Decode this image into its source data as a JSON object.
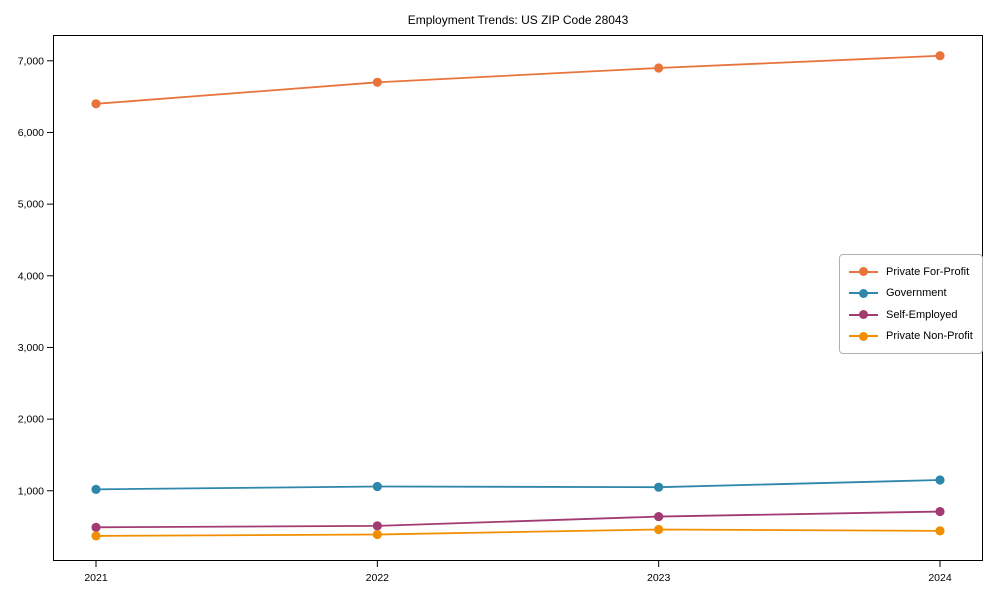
{
  "chart_data": {
    "type": "line",
    "title": "Employment Trends: US ZIP Code 28043",
    "categories": [
      "2021",
      "2022",
      "2023",
      "2024"
    ],
    "series": [
      {
        "name": "Private For-Profit",
        "color": "#E8743B",
        "values": [
          6400,
          6700,
          6900,
          7070
        ]
      },
      {
        "name": "Government",
        "color": "#2E86AB",
        "values": [
          1020,
          1060,
          1050,
          1150
        ]
      },
      {
        "name": "Self-Employed",
        "color": "#A23B72",
        "values": [
          490,
          510,
          640,
          710
        ]
      },
      {
        "name": "Private Non-Profit",
        "color": "#F18F01",
        "values": [
          370,
          390,
          460,
          440
        ]
      }
    ],
    "xlabel": "",
    "ylabel": "",
    "ylim": [
      20,
      7360
    ],
    "yticks": [
      1000,
      2000,
      3000,
      4000,
      5000,
      6000,
      7000
    ],
    "ytick_labels": [
      "1,000",
      "2,000",
      "3,000",
      "4,000",
      "5,000",
      "6,000",
      "7,000"
    ],
    "grid": false,
    "legend_position": "center-right",
    "axis_color": "#000000",
    "marker_style": "circle",
    "background": "#ffffff"
  }
}
